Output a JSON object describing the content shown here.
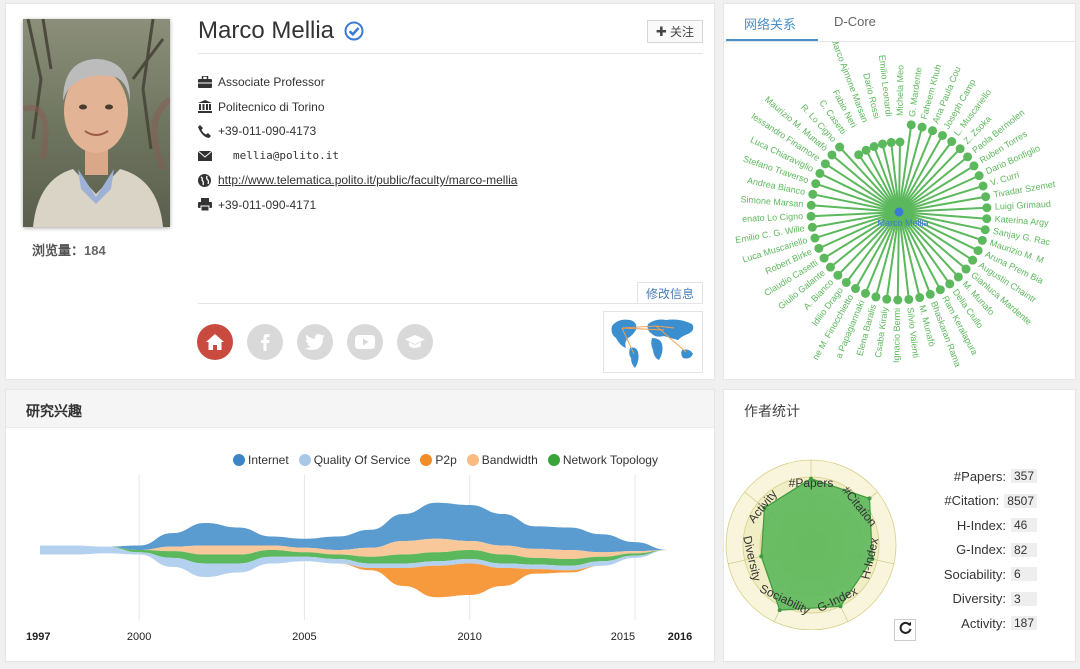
{
  "profile": {
    "name": "Marco Mellia",
    "follow_label": "关注",
    "views_label": "浏览量：",
    "views_count": "184",
    "info": [
      {
        "icon": "briefcase-icon",
        "text": "Associate Professor"
      },
      {
        "icon": "institution-icon",
        "text": "Politecnico di Torino"
      },
      {
        "icon": "phone-icon",
        "text": "+39-011-090-4173"
      },
      {
        "icon": "email-icon",
        "text": "mellia@polito.it"
      },
      {
        "icon": "globe-icon",
        "text": "http://www.telematica.polito.it/public/faculty/marco-mellia"
      },
      {
        "icon": "fax-icon",
        "text": "+39-011-090-4171"
      }
    ],
    "edit_label": "修改信息",
    "socials": [
      "home-icon",
      "facebook-icon",
      "twitter-icon",
      "youtube-icon",
      "graduation-cap-icon"
    ]
  },
  "network": {
    "tabs": [
      "网络关系",
      "D-Core"
    ],
    "center_label": "Marco Mellia",
    "node_color": "#5cb85c",
    "center_color": "#3b7bd6",
    "nodes": [
      "G. Mardente",
      "Faheem Khuh",
      "Ana Paula Cou",
      "Joseph Camp",
      "L. Muscariello",
      "Z. Zsoka",
      "Paola Bermolen",
      "Ruben Torres",
      "Dario Bonfiglio",
      "V. Curri",
      "Tivadar Szemet",
      "Luigi Grimaud",
      "Katerina Argy",
      "Sanjay G. Rac",
      "Maurizio M. M",
      "Aruna Prem Bia",
      "Augustin Chaintr",
      "Gianluca Mardente",
      "M. Munafo",
      "Delia Ciullo",
      "Ram Keralapura",
      "Bhaskaran Rama",
      "M. Munafò",
      "Silvio Valenti",
      "Ignacio Bermi",
      "Csaba Kiraly",
      "Elena Baralis",
      "a Papagiannaki",
      "ne M. Finocchietto",
      "Idilio Drago",
      "A. Bianco",
      "Giulio Galante",
      "Claudio Casetti",
      "Robert Birke",
      "Luca Muscariello",
      "Emilio C. G. Wille",
      "enato Lo Cigno",
      "Simone Marsan",
      "Andrea Bianco",
      "Stefano Traverso",
      "Luca Chiaraviglio",
      "lessandro Finamore",
      "Maurizio M. Munafò",
      "R. Lo Cigno",
      "C. Casetti",
      "Fabio Neri",
      "Marco Ajmone Marsan",
      "Dario Rossi",
      "Emilio Leonardi",
      "Michela Meo"
    ]
  },
  "research": {
    "title": "研究兴趣",
    "legend": [
      {
        "name": "Internet",
        "color": "#5b9bd0"
      },
      {
        "name": "Quality Of Service",
        "color": "#adcbea"
      },
      {
        "name": "P2p",
        "color": "#f59b3e"
      },
      {
        "name": "Bandwidth",
        "color": "#f8c89a"
      },
      {
        "name": "Network Topology",
        "color": "#5cb85c"
      }
    ],
    "axis_labels": [
      "1997",
      "2000",
      "2005",
      "2010",
      "2015",
      "2016"
    ]
  },
  "chart_data": {
    "type": "area",
    "x": [
      1997,
      1998,
      1999,
      2000,
      2001,
      2002,
      2003,
      2004,
      2005,
      2006,
      2007,
      2008,
      2009,
      2010,
      2011,
      2012,
      2013,
      2014,
      2015,
      2016
    ],
    "series": [
      {
        "name": "Internet",
        "values": [
          0,
          0,
          0,
          1,
          3,
          5,
          4,
          2,
          2,
          3,
          4,
          6,
          8,
          8,
          7,
          5,
          5,
          4,
          2,
          0
        ]
      },
      {
        "name": "Quality Of Service",
        "values": [
          2,
          2,
          1.5,
          0.5,
          2,
          3,
          2,
          1.5,
          1,
          1,
          1,
          1,
          1,
          1,
          1,
          1,
          1,
          1,
          0.5,
          0
        ]
      },
      {
        "name": "P2p",
        "values": [
          0,
          0,
          0,
          0,
          0,
          0,
          0,
          0,
          0,
          0,
          0.5,
          4,
          7,
          7,
          4,
          1,
          0.5,
          0,
          0,
          0
        ]
      },
      {
        "name": "Bandwidth",
        "values": [
          0,
          0,
          0,
          0,
          1,
          2,
          2,
          1,
          1,
          1,
          2,
          3,
          3,
          2,
          2,
          2,
          2,
          1,
          0.5,
          0
        ]
      },
      {
        "name": "Network Topology",
        "values": [
          0,
          0,
          0,
          0.5,
          1.5,
          2,
          2,
          1.5,
          1,
          1,
          1.5,
          2,
          2,
          2,
          2,
          1.5,
          1.5,
          1,
          0.5,
          0
        ]
      }
    ],
    "xlabel": "",
    "ylabel": ""
  },
  "stats": {
    "title": "作者统计",
    "items": [
      {
        "label": "#Papers:",
        "value": "357"
      },
      {
        "label": "#Citation:",
        "value": "8507"
      },
      {
        "label": "H-Index:",
        "value": "46"
      },
      {
        "label": "G-Index:",
        "value": "82"
      },
      {
        "label": "Sociability:",
        "value": "6"
      },
      {
        "label": "Diversity:",
        "value": "3"
      },
      {
        "label": "Activity:",
        "value": "187"
      }
    ],
    "radar_axes": [
      "#Papers",
      "#Citation",
      "H-Index",
      "G-Index",
      "Sociability",
      "Diversity",
      "Activity"
    ],
    "radar_values": [
      0.78,
      0.88,
      0.74,
      0.8,
      0.85,
      0.6,
      0.7
    ],
    "radar_color": "#5cb85c"
  }
}
